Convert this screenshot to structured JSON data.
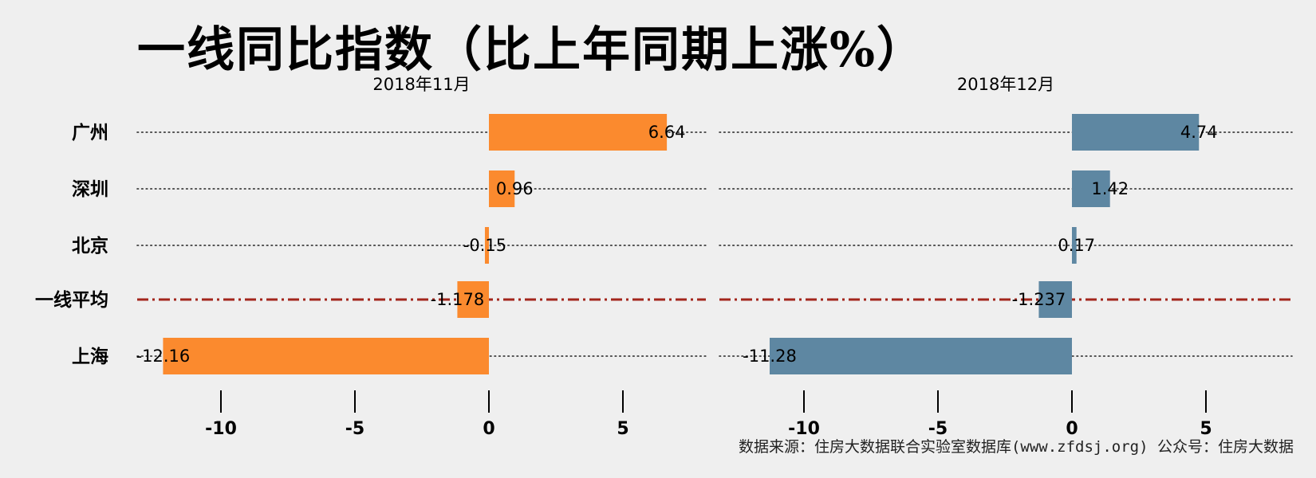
{
  "title": "一线同比指数（比上年同期上涨%）",
  "source": "数据来源：住房大数据联合实验室数据库(www.zfdsj.org) 公众号：住房大数据",
  "colors": {
    "orange": "#fb8a2e",
    "blue": "#5e87a2",
    "avg_line": "#a3261c",
    "dots": "#222222"
  },
  "chart_data": [
    {
      "type": "bar",
      "orientation": "horizontal",
      "subtitle": "2018年11月",
      "categories": [
        "广州",
        "深圳",
        "北京",
        "一线平均",
        "上海"
      ],
      "values": [
        6.64,
        0.96,
        -0.15,
        -1.178,
        -12.16
      ],
      "value_labels": [
        "6.64",
        "0.96",
        "-0.15",
        "-1.178",
        "-12.16"
      ],
      "color": "#fb8a2e",
      "xlim": [
        -12.6,
        8.2
      ],
      "xticks": [
        -10,
        -5,
        0,
        5
      ],
      "xtick_labels": [
        "-10",
        "-5",
        "0",
        "5"
      ],
      "highlight_category": "一线平均",
      "grid": false
    },
    {
      "type": "bar",
      "orientation": "horizontal",
      "subtitle": "2018年12月",
      "categories": [
        "广州",
        "深圳",
        "北京",
        "一线平均",
        "上海"
      ],
      "values": [
        4.74,
        1.42,
        0.17,
        -1.237,
        -11.28
      ],
      "value_labels": [
        "4.74",
        "1.42",
        "0.17",
        "-1.237",
        "-11.28"
      ],
      "color": "#5e87a2",
      "xlim": [
        -11.8,
        8.2
      ],
      "xticks": [
        -10,
        -5,
        0,
        5
      ],
      "xtick_labels": [
        "-10",
        "-5",
        "0",
        "5"
      ],
      "highlight_category": "一线平均",
      "grid": false
    }
  ]
}
